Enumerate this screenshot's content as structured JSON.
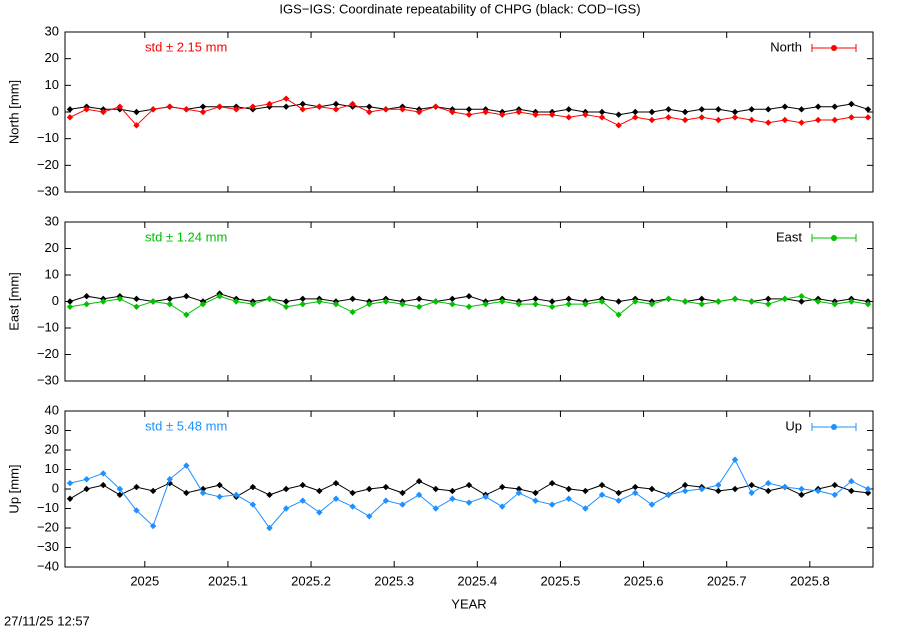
{
  "title": "IGS−IGS: Coordinate repeatability of CHPG (black: COD−IGS)",
  "timestamp": "27/11/25 12:57",
  "chart_data": [
    {
      "type": "line",
      "ylabel": "North [mm]",
      "annotation": "std ± 2.15 mm",
      "x": [
        2024.91,
        2024.93,
        2024.95,
        2024.97,
        2024.99,
        2025.01,
        2025.03,
        2025.05,
        2025.07,
        2025.09,
        2025.11,
        2025.13,
        2025.15,
        2025.17,
        2025.19,
        2025.21,
        2025.23,
        2025.25,
        2025.27,
        2025.29,
        2025.31,
        2025.33,
        2025.35,
        2025.37,
        2025.39,
        2025.41,
        2025.43,
        2025.45,
        2025.47,
        2025.49,
        2025.51,
        2025.53,
        2025.55,
        2025.57,
        2025.59,
        2025.61,
        2025.63,
        2025.65,
        2025.67,
        2025.69,
        2025.71,
        2025.73,
        2025.75,
        2025.77,
        2025.79,
        2025.81,
        2025.83,
        2025.85,
        2025.87
      ],
      "series": [
        {
          "name": "North",
          "color": "#ff0000",
          "values": [
            -2,
            1,
            0,
            2,
            -5,
            1,
            2,
            1,
            0,
            2,
            1,
            2,
            3,
            5,
            1,
            2,
            1,
            3,
            0,
            1,
            1,
            0,
            2,
            0,
            -1,
            0,
            -1,
            0,
            -1,
            -1,
            -2,
            -1,
            -2,
            -5,
            -2,
            -3,
            -2,
            -3,
            -2,
            -3,
            -2,
            -3,
            -4,
            -3,
            -4,
            -3,
            -3,
            -2,
            -2
          ]
        },
        {
          "color": "#000000",
          "values": [
            1,
            2,
            1,
            1,
            0,
            1,
            2,
            1,
            2,
            2,
            2,
            1,
            2,
            2,
            3,
            2,
            3,
            2,
            2,
            1,
            2,
            1,
            2,
            1,
            1,
            1,
            0,
            1,
            0,
            0,
            1,
            0,
            0,
            -1,
            0,
            0,
            1,
            0,
            1,
            1,
            0,
            1,
            1,
            2,
            1,
            2,
            2,
            3,
            1
          ]
        }
      ],
      "xlim": [
        2024.904,
        2025.876
      ],
      "ylim": [
        -30,
        30
      ],
      "yticks": [
        {
          "value": -30,
          "label": "−30"
        },
        {
          "value": -20,
          "label": "−20"
        },
        {
          "value": -10,
          "label": "−10"
        },
        0,
        10,
        20,
        30
      ]
    },
    {
      "type": "line",
      "ylabel": "East [mm]",
      "annotation": "std ± 1.24 mm",
      "x": [
        2024.91,
        2024.93,
        2024.95,
        2024.97,
        2024.99,
        2025.01,
        2025.03,
        2025.05,
        2025.07,
        2025.09,
        2025.11,
        2025.13,
        2025.15,
        2025.17,
        2025.19,
        2025.21,
        2025.23,
        2025.25,
        2025.27,
        2025.29,
        2025.31,
        2025.33,
        2025.35,
        2025.37,
        2025.39,
        2025.41,
        2025.43,
        2025.45,
        2025.47,
        2025.49,
        2025.51,
        2025.53,
        2025.55,
        2025.57,
        2025.59,
        2025.61,
        2025.63,
        2025.65,
        2025.67,
        2025.69,
        2025.71,
        2025.73,
        2025.75,
        2025.77,
        2025.79,
        2025.81,
        2025.83,
        2025.85,
        2025.87
      ],
      "series": [
        {
          "name": "East",
          "color": "#00c000",
          "values": [
            -2,
            -1,
            0,
            1,
            -2,
            0,
            -1,
            -5,
            -1,
            2,
            0,
            -1,
            1,
            -2,
            -1,
            0,
            -1,
            -4,
            -1,
            0,
            -1,
            -2,
            0,
            -1,
            -2,
            -1,
            0,
            -1,
            -1,
            -2,
            -1,
            -1,
            0,
            -5,
            0,
            -1,
            1,
            0,
            -1,
            0,
            1,
            0,
            -1,
            1,
            2,
            0,
            -1,
            0,
            -1
          ]
        },
        {
          "color": "#000000",
          "values": [
            0,
            2,
            1,
            2,
            1,
            0,
            1,
            2,
            0,
            3,
            1,
            0,
            1,
            0,
            1,
            1,
            0,
            1,
            0,
            1,
            0,
            1,
            0,
            1,
            2,
            0,
            1,
            0,
            1,
            0,
            1,
            0,
            1,
            0,
            1,
            0,
            1,
            0,
            1,
            0,
            1,
            0,
            1,
            1,
            0,
            1,
            0,
            1,
            0
          ]
        }
      ],
      "xlim": [
        2024.904,
        2025.876
      ],
      "ylim": [
        -30,
        30
      ],
      "yticks": [
        {
          "value": -30,
          "label": "−30"
        },
        {
          "value": -20,
          "label": "−20"
        },
        {
          "value": -10,
          "label": "−10"
        },
        0,
        10,
        20,
        30
      ]
    },
    {
      "type": "line",
      "ylabel": "Up [mm]",
      "annotation": "std ± 5.48 mm",
      "xlabel": "YEAR",
      "x": [
        2024.91,
        2024.93,
        2024.95,
        2024.97,
        2024.99,
        2025.01,
        2025.03,
        2025.05,
        2025.07,
        2025.09,
        2025.11,
        2025.13,
        2025.15,
        2025.17,
        2025.19,
        2025.21,
        2025.23,
        2025.25,
        2025.27,
        2025.29,
        2025.31,
        2025.33,
        2025.35,
        2025.37,
        2025.39,
        2025.41,
        2025.43,
        2025.45,
        2025.47,
        2025.49,
        2025.51,
        2025.53,
        2025.55,
        2025.57,
        2025.59,
        2025.61,
        2025.63,
        2025.65,
        2025.67,
        2025.69,
        2025.71,
        2025.73,
        2025.75,
        2025.77,
        2025.79,
        2025.81,
        2025.83,
        2025.85,
        2025.87
      ],
      "series": [
        {
          "name": "Up",
          "color": "#1e90ff",
          "values": [
            3,
            5,
            8,
            0,
            -11,
            -19,
            5,
            12,
            -2,
            -4,
            -3,
            -8,
            -20,
            -10,
            -6,
            -12,
            -5,
            -9,
            -14,
            -6,
            -8,
            -3,
            -10,
            -5,
            -7,
            -4,
            -9,
            -2,
            -6,
            -8,
            -5,
            -10,
            -3,
            -6,
            -2,
            -8,
            -3,
            -1,
            0,
            2,
            15,
            -2,
            3,
            1,
            0,
            -1,
            -3,
            4,
            0
          ]
        },
        {
          "color": "#000000",
          "values": [
            -5,
            0,
            2,
            -3,
            1,
            -1,
            3,
            -2,
            0,
            2,
            -4,
            1,
            -3,
            0,
            2,
            -1,
            3,
            -2,
            0,
            1,
            -2,
            4,
            0,
            -1,
            2,
            -3,
            1,
            0,
            -2,
            3,
            0,
            -1,
            2,
            -2,
            1,
            0,
            -3,
            2,
            1,
            -1,
            0,
            2,
            -1,
            1,
            -3,
            0,
            2,
            -1,
            -2
          ]
        }
      ],
      "xlim": [
        2024.904,
        2025.876
      ],
      "ylim": [
        -40,
        40
      ],
      "xticks": [
        2025,
        2025.1,
        2025.2,
        2025.3,
        2025.4,
        2025.5,
        2025.6,
        2025.7,
        2025.8
      ],
      "yticks": [
        {
          "value": -40,
          "label": "−40"
        },
        {
          "value": -30,
          "label": "−30"
        },
        {
          "value": -20,
          "label": "−20"
        },
        {
          "value": -10,
          "label": "−10"
        },
        0,
        10,
        20,
        30,
        40
      ]
    }
  ]
}
